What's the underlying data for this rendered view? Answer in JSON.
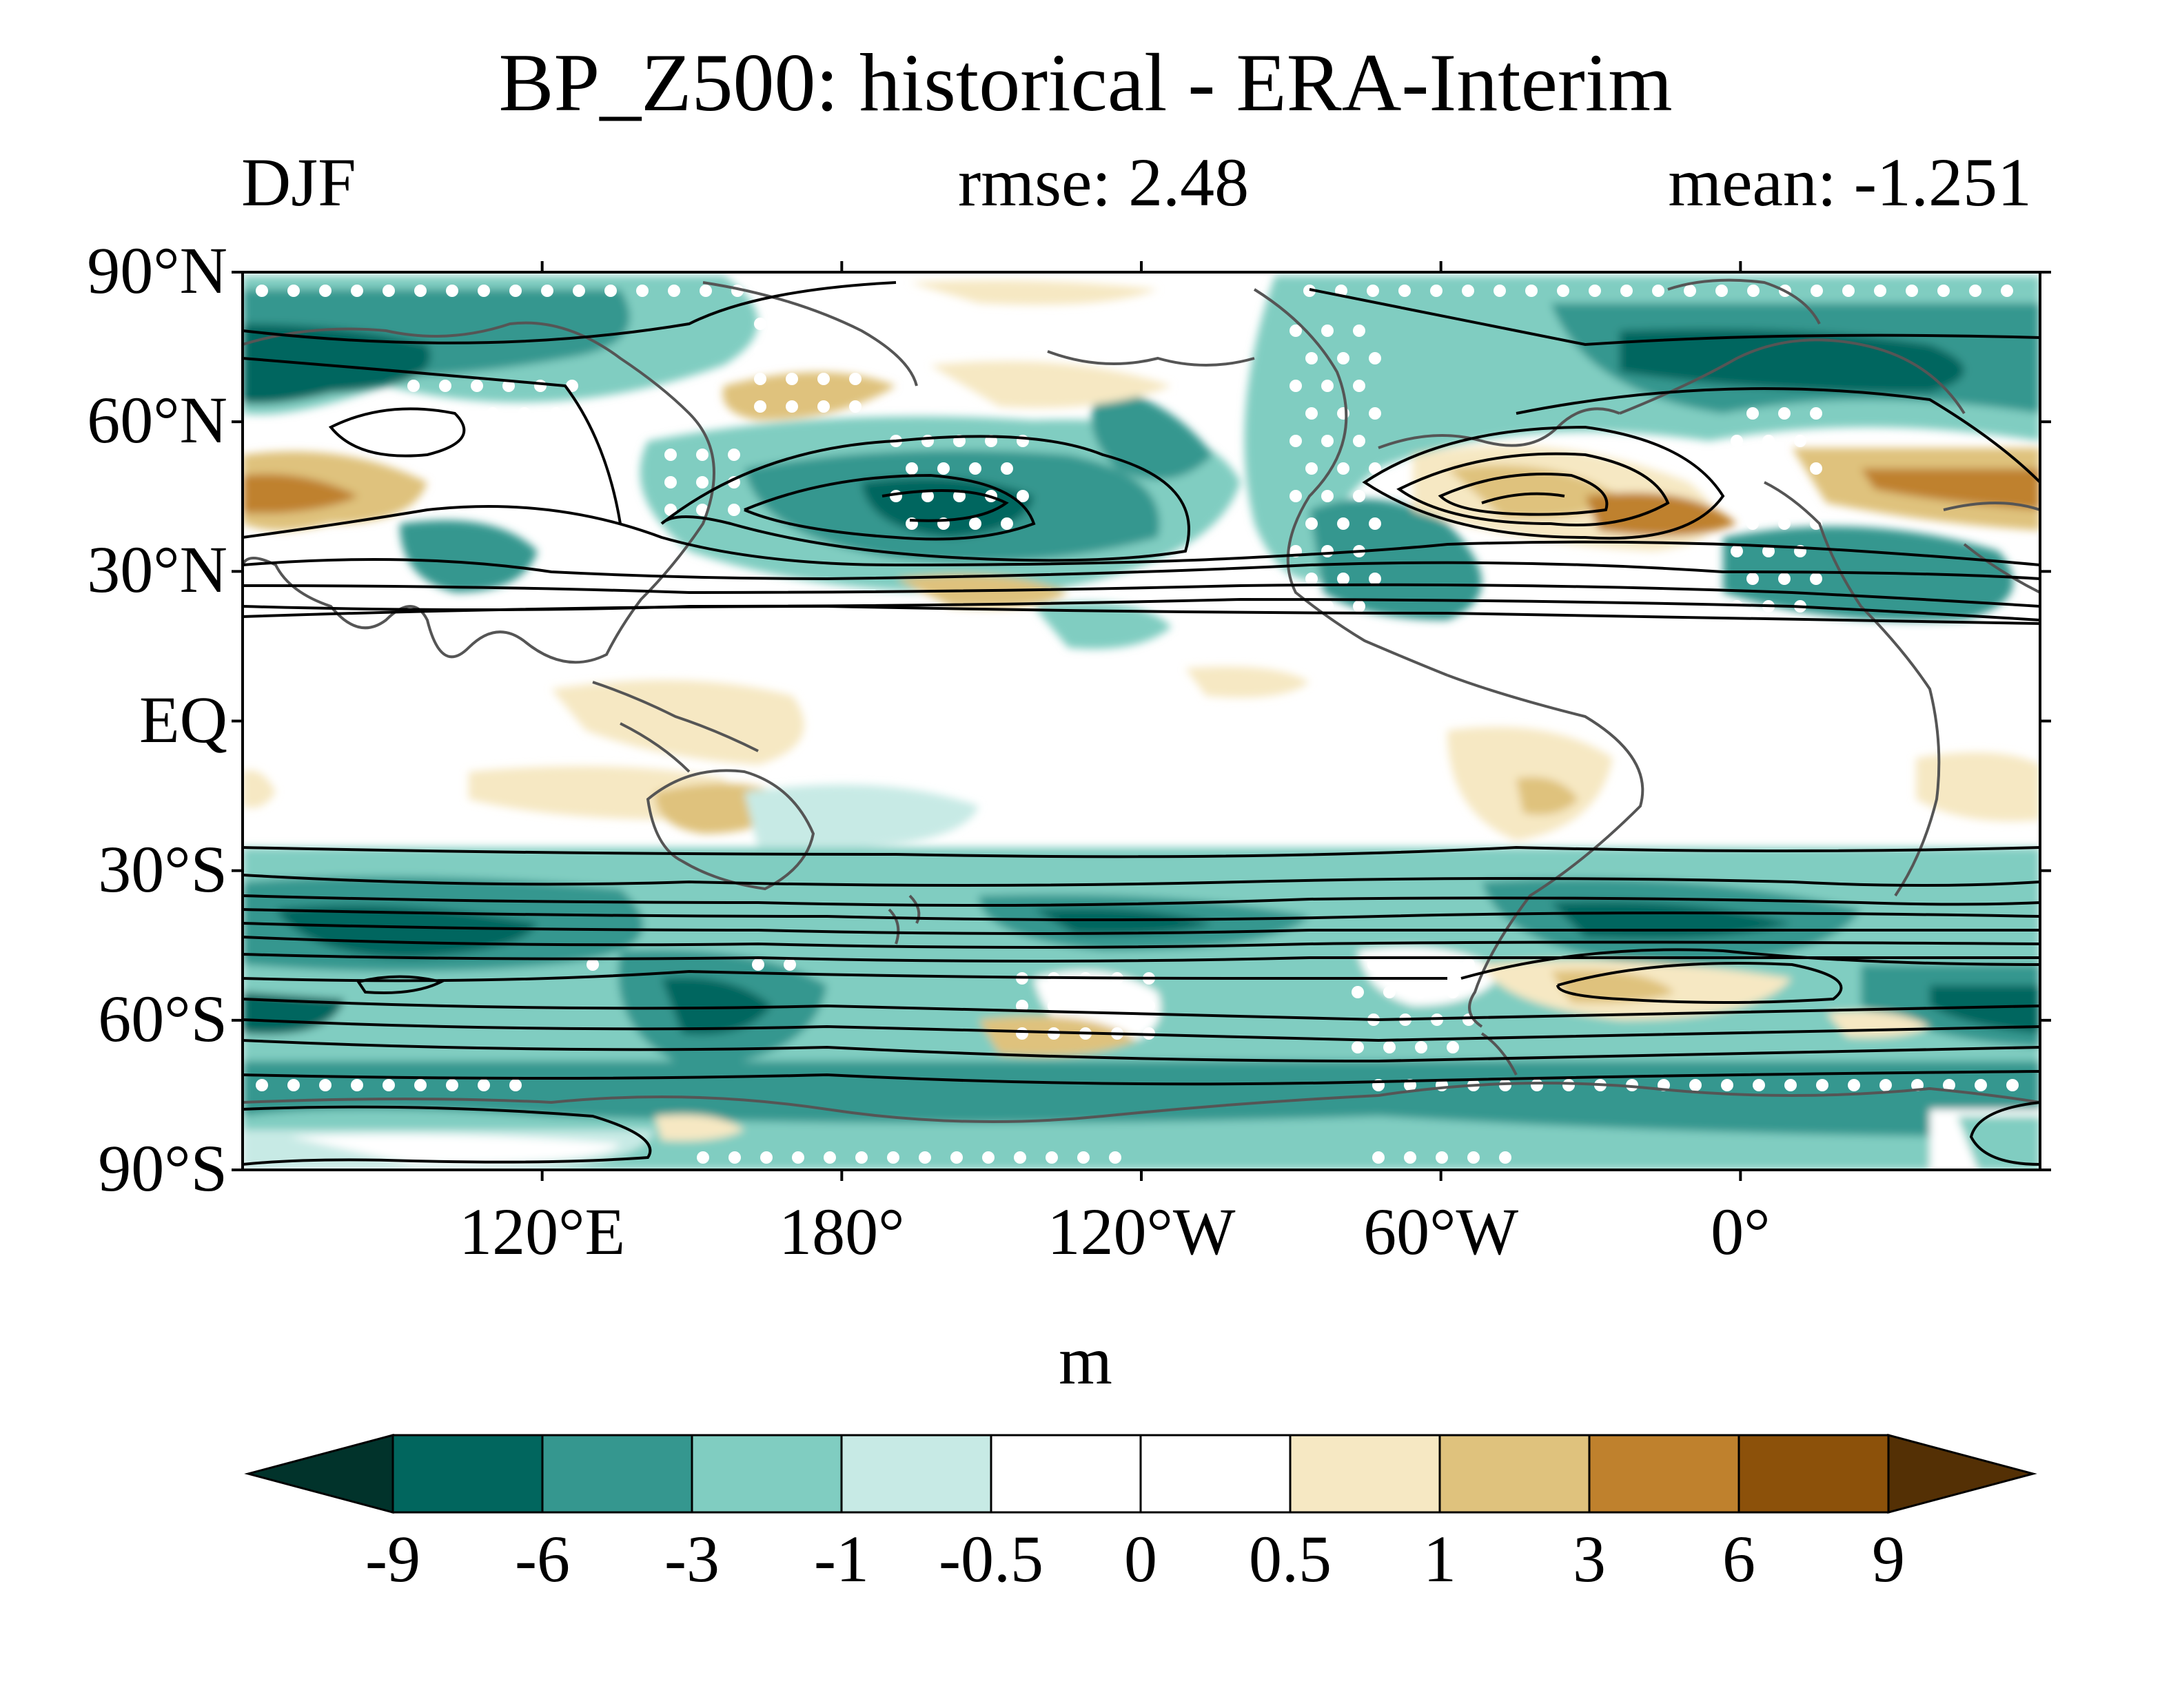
{
  "title": "BP_Z500: historical - ERA-Interim",
  "subtitle": {
    "left": "DJF",
    "center": "rmse: 2.48",
    "right": "mean: -1.251"
  },
  "map": {
    "lon_range": [
      60,
      420
    ],
    "lat_range": [
      -90,
      90
    ],
    "lat_ticks": [
      {
        "lat": 90,
        "label": "90°N"
      },
      {
        "lat": 60,
        "label": "60°N"
      },
      {
        "lat": 30,
        "label": "30°N"
      },
      {
        "lat": 0,
        "label": "EQ"
      },
      {
        "lat": -30,
        "label": "30°S"
      },
      {
        "lat": -60,
        "label": "60°S"
      },
      {
        "lat": -90,
        "label": "90°S"
      }
    ],
    "lon_ticks": [
      {
        "lon": 120,
        "label": "120°E"
      },
      {
        "lon": 180,
        "label": "180°"
      },
      {
        "lon": 240,
        "label": "120°W"
      },
      {
        "lon": 300,
        "label": "60°W"
      },
      {
        "lon": 360,
        "label": "0°"
      }
    ]
  },
  "colorbar": {
    "label": "m",
    "levels": [
      "-9",
      "-6",
      "-3",
      "-1",
      "-0.5",
      "0",
      "0.5",
      "1",
      "3",
      "6",
      "9"
    ],
    "colors": [
      "#01332b",
      "#01665e",
      "#35978f",
      "#80cdc1",
      "#c7eae5",
      "#ffffff",
      "#ffffff",
      "#f6e8c3",
      "#dfc27d",
      "#bf812d",
      "#8c510a",
      "#543005"
    ]
  }
}
